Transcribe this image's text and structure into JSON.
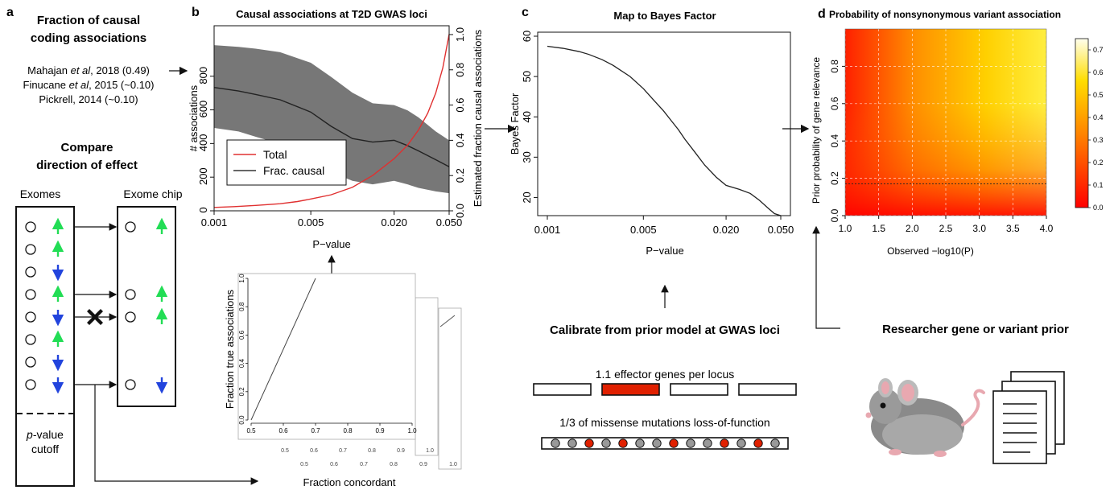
{
  "panel_a": {
    "letter": "a",
    "title_line1": "Fraction of causal",
    "title_line2": "coding associations",
    "refs": [
      {
        "pre": "Mahajan ",
        "ital": "et al",
        "post": ", 2018 (0.49)"
      },
      {
        "pre": "Finucane ",
        "ital": "et al",
        "post": ", 2015 (~0.10)"
      },
      {
        "pre": "Pickrell, 2014 (~0.10)",
        "ital": "",
        "post": ""
      }
    ],
    "compare_line1": "Compare",
    "compare_line2": "direction of effect",
    "exomes_label": "Exomes",
    "exome_chip_label": "Exome chip",
    "cutoff_line1_ital": "p",
    "cutoff_line1_rest": "-value",
    "cutoff_line2": "cutoff",
    "exome_arrows": [
      "up",
      "up",
      "down",
      "up",
      "down",
      "up",
      "down",
      "down"
    ],
    "chip_rows": [
      {
        "row": 0,
        "arrow": "up"
      },
      {
        "row": 3,
        "arrow": "up"
      },
      {
        "row": 4,
        "arrow": "up"
      },
      {
        "row": 7,
        "arrow": "down"
      }
    ],
    "colors": {
      "up": "#22dd55",
      "down": "#2244dd"
    }
  },
  "panel_b": {
    "letter": "b",
    "title": "Causal associations at T2D GWAS loci",
    "ylabel_left": "# associations",
    "ylabel_right": "Estimated fraction causal associations",
    "xlabel": "P−value",
    "legend": [
      {
        "label": "Total",
        "color": "#e03030"
      },
      {
        "label": "Frac. causal",
        "color": "#333333"
      }
    ],
    "chart_data": {
      "type": "line",
      "x_ticks": [
        "0.001",
        "0.005",
        "0.020",
        "0.050"
      ],
      "x_tick_values": [
        0.001,
        0.005,
        0.02,
        0.05
      ],
      "x_scale": "log",
      "yleft_ticks": [
        "0",
        "200",
        "400",
        "600",
        "800"
      ],
      "yleft_lim": [
        0,
        1100
      ],
      "yright_ticks": [
        "0.0",
        "0.2",
        "0.4",
        "0.6",
        "0.8",
        "1.0"
      ],
      "yright_lim": [
        0,
        1.05
      ],
      "series": [
        {
          "name": "Total",
          "axis": "left",
          "x": [
            0.001,
            0.0014,
            0.002,
            0.003,
            0.004,
            0.005,
            0.007,
            0.01,
            0.014,
            0.02,
            0.025,
            0.03,
            0.035,
            0.04,
            0.045,
            0.05
          ],
          "y": [
            20,
            25,
            32,
            42,
            55,
            70,
            95,
            140,
            210,
            310,
            390,
            480,
            580,
            700,
            850,
            1050
          ]
        },
        {
          "name": "Frac. causal",
          "axis": "right",
          "x": [
            0.001,
            0.0015,
            0.002,
            0.003,
            0.005,
            0.007,
            0.01,
            0.014,
            0.02,
            0.025,
            0.03,
            0.04,
            0.05
          ],
          "y": [
            0.7,
            0.68,
            0.66,
            0.63,
            0.56,
            0.48,
            0.41,
            0.39,
            0.4,
            0.37,
            0.34,
            0.29,
            0.25
          ],
          "lower": [
            0.47,
            0.45,
            0.42,
            0.38,
            0.3,
            0.22,
            0.17,
            0.15,
            0.17,
            0.15,
            0.13,
            0.11,
            0.1
          ],
          "upper": [
            0.94,
            0.93,
            0.92,
            0.9,
            0.84,
            0.76,
            0.67,
            0.61,
            0.6,
            0.57,
            0.53,
            0.45,
            0.4
          ]
        }
      ]
    }
  },
  "panel_b_inset": {
    "ylabel": "Fraction true associations",
    "xlabel": "Fraction concordant",
    "chart_data": {
      "type": "line",
      "x_ticks": [
        "0.5",
        "0.6",
        "0.7",
        "0.8",
        "0.9",
        "1.0"
      ],
      "xlim": [
        0.5,
        1.0
      ],
      "y_ticks": [
        "0.0",
        "0.2",
        "0.4",
        "0.6",
        "0.8",
        "1.0"
      ],
      "ylim": [
        0,
        1
      ],
      "series": [
        {
          "x": [
            0.5,
            0.7
          ],
          "y": [
            0.0,
            1.0
          ]
        }
      ]
    },
    "stack_ticks_2": [
      "0.5",
      "0.6",
      "0.7",
      "0.8",
      "0.9",
      "1.0"
    ],
    "stack_ticks_3": [
      "0.5",
      "0.6",
      "0.7",
      "0.8",
      "0.9",
      "1.0"
    ]
  },
  "panel_c": {
    "letter": "c",
    "title": "Map to Bayes Factor",
    "ylabel": "Bayes Factor",
    "xlabel": "P−value",
    "chart_data": {
      "type": "line",
      "x_ticks": [
        "0.001",
        "0.005",
        "0.020",
        "0.050"
      ],
      "x_tick_values": [
        0.001,
        0.005,
        0.02,
        0.05
      ],
      "x_scale": "log",
      "y_ticks": [
        "20",
        "30",
        "40",
        "50",
        "60"
      ],
      "y_tick_values": [
        20,
        30,
        40,
        50,
        60
      ],
      "ylim": [
        15.5,
        61
      ],
      "series": [
        {
          "x": [
            0.001,
            0.0013,
            0.0017,
            0.002,
            0.0025,
            0.003,
            0.004,
            0.005,
            0.006,
            0.007,
            0.008,
            0.009,
            0.01,
            0.012,
            0.014,
            0.017,
            0.02,
            0.025,
            0.03,
            0.035,
            0.04,
            0.045,
            0.05
          ],
          "y": [
            57.5,
            57,
            56.2,
            55.5,
            54.2,
            52.8,
            50,
            47,
            44,
            41.5,
            39,
            36.8,
            34.5,
            31,
            28,
            25,
            23,
            22,
            21,
            19.3,
            17.5,
            16,
            15.5
          ]
        }
      ]
    },
    "calibrate": "Calibrate from prior model at GWAS loci",
    "effector": "1.1 effector genes per locus",
    "missense": "1/3 of missense mutations loss-of-function",
    "gene_fills": [
      "#ffffff",
      "#e02000",
      "#ffffff",
      "#ffffff"
    ],
    "dot_colors": [
      "#999",
      "#999",
      "#e02000",
      "#999",
      "#e02000",
      "#999",
      "#999",
      "#e02000",
      "#999",
      "#999",
      "#e02000",
      "#999",
      "#e02000",
      "#999"
    ]
  },
  "panel_d": {
    "letter": "d",
    "title": "Probability of nonsynonymous variant association",
    "ylabel": "Prior probability of gene relevance",
    "xlabel": "Observed −log10(P)",
    "researcher": "Researcher gene or variant prior",
    "chart_data": {
      "type": "heatmap",
      "x_ticks": [
        "1.0",
        "1.5",
        "2.0",
        "2.5",
        "3.0",
        "3.5",
        "4.0"
      ],
      "xlim": [
        1,
        4
      ],
      "y_ticks": [
        "0.0",
        "0.2",
        "0.4",
        "0.6",
        "0.8"
      ],
      "ylim": [
        0,
        1
      ],
      "colorbar_ticks": [
        "0.0",
        "0.1",
        "0.2",
        "0.3",
        "0.4",
        "0.5",
        "0.6",
        "0.7"
      ],
      "colorbar_lim": [
        0,
        0.75
      ],
      "reference_line_y": 0.17,
      "colors": {
        "low": "#ff0000",
        "mid": "#ffaa00",
        "high": "#ffffee"
      }
    }
  }
}
